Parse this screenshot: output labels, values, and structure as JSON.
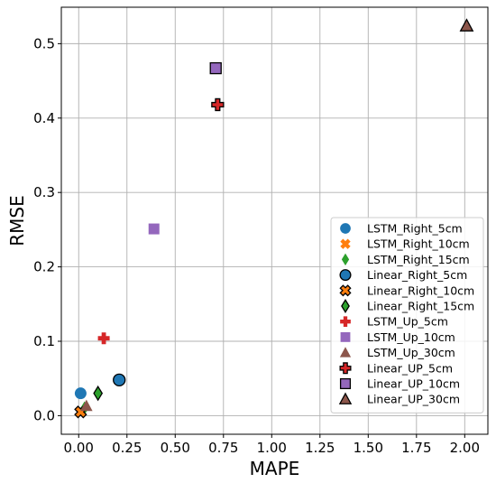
{
  "chart_data": {
    "type": "scatter",
    "title": "",
    "xlabel": "MAPE",
    "ylabel": "RMSE",
    "xlim": [
      -0.09,
      2.12
    ],
    "ylim": [
      -0.025,
      0.549
    ],
    "xticks": [
      0.0,
      0.25,
      0.5,
      0.75,
      1.0,
      1.25,
      1.5,
      1.75,
      2.0
    ],
    "xtick_labels": [
      "0.00",
      "0.25",
      "0.50",
      "0.75",
      "1.00",
      "1.25",
      "1.50",
      "1.75",
      "2.00"
    ],
    "yticks": [
      0.0,
      0.1,
      0.2,
      0.3,
      0.4,
      0.5
    ],
    "ytick_labels": [
      "0.0",
      "0.1",
      "0.2",
      "0.3",
      "0.4",
      "0.5"
    ],
    "grid": true,
    "legend_position": "lower-right",
    "series": [
      {
        "name": "LSTM_Right_5cm",
        "marker": "circle",
        "color": "#1f77b4",
        "edge": false,
        "points": [
          {
            "x": 0.01,
            "y": 0.03
          }
        ]
      },
      {
        "name": "LSTM_Right_10cm",
        "marker": "x",
        "color": "#ff7f0e",
        "edge": false,
        "points": [
          {
            "x": 0.01,
            "y": 0.005
          }
        ]
      },
      {
        "name": "LSTM_Right_15cm",
        "marker": "diamond",
        "color": "#2ca02c",
        "edge": false,
        "points": [
          {
            "x": 0.03,
            "y": 0.01
          }
        ]
      },
      {
        "name": "Linear_Right_5cm",
        "marker": "circle",
        "color": "#1f77b4",
        "edge": true,
        "points": [
          {
            "x": 0.21,
            "y": 0.048
          }
        ]
      },
      {
        "name": "Linear_Right_10cm",
        "marker": "x",
        "color": "#ff7f0e",
        "edge": true,
        "points": [
          {
            "x": 0.01,
            "y": 0.005
          }
        ]
      },
      {
        "name": "Linear_Right_15cm",
        "marker": "diamond",
        "color": "#2ca02c",
        "edge": true,
        "points": [
          {
            "x": 0.1,
            "y": 0.03
          }
        ]
      },
      {
        "name": "LSTM_Up_5cm",
        "marker": "plus",
        "color": "#d62728",
        "edge": false,
        "points": [
          {
            "x": 0.13,
            "y": 0.104
          }
        ]
      },
      {
        "name": "LSTM_Up_10cm",
        "marker": "square",
        "color": "#9467bd",
        "edge": false,
        "points": [
          {
            "x": 0.39,
            "y": 0.251
          }
        ]
      },
      {
        "name": "LSTM_Up_30cm",
        "marker": "triangle",
        "color": "#8c564b",
        "edge": false,
        "points": [
          {
            "x": 0.04,
            "y": 0.013
          }
        ]
      },
      {
        "name": "Linear_UP_5cm",
        "marker": "plus",
        "color": "#d62728",
        "edge": true,
        "points": [
          {
            "x": 0.72,
            "y": 0.418
          }
        ]
      },
      {
        "name": "Linear_UP_10cm",
        "marker": "square",
        "color": "#9467bd",
        "edge": true,
        "points": [
          {
            "x": 0.71,
            "y": 0.467
          }
        ]
      },
      {
        "name": "Linear_UP_30cm",
        "marker": "triangle",
        "color": "#8c564b",
        "edge": true,
        "points": [
          {
            "x": 2.01,
            "y": 0.524
          }
        ]
      }
    ]
  }
}
